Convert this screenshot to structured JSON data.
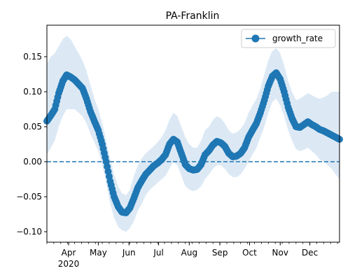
{
  "chart_data": {
    "type": "line",
    "title": "PA-Franklin",
    "xlabel": "",
    "ylabel": "",
    "x_range": [
      "2020-03-10",
      "2020-12-31"
    ],
    "ylim": [
      -0.115,
      0.195
    ],
    "y_ticks": [
      -0.1,
      -0.05,
      0.0,
      0.05,
      0.1,
      0.15
    ],
    "y_tick_labels": [
      "−0.10",
      "−0.05",
      "0.00",
      "0.05",
      "0.10",
      "0.15"
    ],
    "x_ticks": [
      {
        "date": "2020-04-01",
        "label": "Apr",
        "sublabel": "2020"
      },
      {
        "date": "2020-05-01",
        "label": "May",
        "sublabel": ""
      },
      {
        "date": "2020-06-01",
        "label": "Jun",
        "sublabel": ""
      },
      {
        "date": "2020-07-01",
        "label": "Jul",
        "sublabel": ""
      },
      {
        "date": "2020-08-01",
        "label": "Aug",
        "sublabel": ""
      },
      {
        "date": "2020-09-01",
        "label": "Sep",
        "sublabel": ""
      },
      {
        "date": "2020-10-01",
        "label": "Oct",
        "sublabel": ""
      },
      {
        "date": "2020-11-01",
        "label": "Nov",
        "sublabel": ""
      },
      {
        "date": "2020-12-01",
        "label": "Dec",
        "sublabel": ""
      }
    ],
    "reference_line": {
      "y": 0.0,
      "style": "dashed",
      "color": "#1f77b4"
    },
    "grid": false,
    "legend": {
      "position": "top-right",
      "entries": [
        "growth_rate"
      ]
    },
    "series": [
      {
        "name": "growth_rate",
        "color": "#1f77b4",
        "marker": "circle",
        "band_color": "#dce9f5",
        "points": [
          {
            "date": "2020-03-10",
            "y": 0.058,
            "lo": 0.01,
            "hi": 0.14
          },
          {
            "date": "2020-03-14",
            "y": 0.066,
            "lo": 0.02,
            "hi": 0.15
          },
          {
            "date": "2020-03-18",
            "y": 0.075,
            "lo": 0.03,
            "hi": 0.155
          },
          {
            "date": "2020-03-22",
            "y": 0.098,
            "lo": 0.05,
            "hi": 0.165
          },
          {
            "date": "2020-03-26",
            "y": 0.115,
            "lo": 0.065,
            "hi": 0.175
          },
          {
            "date": "2020-03-30",
            "y": 0.124,
            "lo": 0.075,
            "hi": 0.18
          },
          {
            "date": "2020-04-03",
            "y": 0.121,
            "lo": 0.075,
            "hi": 0.175
          },
          {
            "date": "2020-04-07",
            "y": 0.117,
            "lo": 0.075,
            "hi": 0.165
          },
          {
            "date": "2020-04-11",
            "y": 0.111,
            "lo": 0.07,
            "hi": 0.155
          },
          {
            "date": "2020-04-15",
            "y": 0.105,
            "lo": 0.065,
            "hi": 0.145
          },
          {
            "date": "2020-04-19",
            "y": 0.09,
            "lo": 0.055,
            "hi": 0.13
          },
          {
            "date": "2020-04-23",
            "y": 0.072,
            "lo": 0.04,
            "hi": 0.11
          },
          {
            "date": "2020-04-27",
            "y": 0.058,
            "lo": 0.028,
            "hi": 0.09
          },
          {
            "date": "2020-05-01",
            "y": 0.045,
            "lo": 0.015,
            "hi": 0.075
          },
          {
            "date": "2020-05-05",
            "y": 0.025,
            "lo": -0.005,
            "hi": 0.055
          },
          {
            "date": "2020-05-09",
            "y": 0.0,
            "lo": -0.03,
            "hi": 0.03
          },
          {
            "date": "2020-05-13",
            "y": -0.028,
            "lo": -0.06,
            "hi": 0.005
          },
          {
            "date": "2020-05-17",
            "y": -0.05,
            "lo": -0.08,
            "hi": -0.018
          },
          {
            "date": "2020-05-21",
            "y": -0.064,
            "lo": -0.093,
            "hi": -0.035
          },
          {
            "date": "2020-05-25",
            "y": -0.072,
            "lo": -0.098,
            "hi": -0.045
          },
          {
            "date": "2020-05-29",
            "y": -0.073,
            "lo": -0.1,
            "hi": -0.048
          },
          {
            "date": "2020-06-02",
            "y": -0.066,
            "lo": -0.095,
            "hi": -0.04
          },
          {
            "date": "2020-06-06",
            "y": -0.052,
            "lo": -0.085,
            "hi": -0.02
          },
          {
            "date": "2020-06-10",
            "y": -0.037,
            "lo": -0.07,
            "hi": -0.005
          },
          {
            "date": "2020-06-14",
            "y": -0.027,
            "lo": -0.06,
            "hi": 0.005
          },
          {
            "date": "2020-06-18",
            "y": -0.018,
            "lo": -0.048,
            "hi": 0.012
          },
          {
            "date": "2020-06-22",
            "y": -0.012,
            "lo": -0.04,
            "hi": 0.017
          },
          {
            "date": "2020-06-26",
            "y": -0.006,
            "lo": -0.035,
            "hi": 0.022
          },
          {
            "date": "2020-06-30",
            "y": -0.002,
            "lo": -0.03,
            "hi": 0.028
          },
          {
            "date": "2020-07-04",
            "y": 0.003,
            "lo": -0.025,
            "hi": 0.035
          },
          {
            "date": "2020-07-08",
            "y": 0.01,
            "lo": -0.02,
            "hi": 0.045
          },
          {
            "date": "2020-07-12",
            "y": 0.025,
            "lo": -0.01,
            "hi": 0.06
          },
          {
            "date": "2020-07-16",
            "y": 0.032,
            "lo": 0.0,
            "hi": 0.07
          },
          {
            "date": "2020-07-20",
            "y": 0.028,
            "lo": -0.005,
            "hi": 0.065
          },
          {
            "date": "2020-07-24",
            "y": 0.012,
            "lo": -0.02,
            "hi": 0.05
          },
          {
            "date": "2020-07-28",
            "y": -0.004,
            "lo": -0.035,
            "hi": 0.035
          },
          {
            "date": "2020-08-01",
            "y": -0.01,
            "lo": -0.04,
            "hi": 0.025
          },
          {
            "date": "2020-08-05",
            "y": -0.012,
            "lo": -0.042,
            "hi": 0.02
          },
          {
            "date": "2020-08-09",
            "y": -0.011,
            "lo": -0.04,
            "hi": 0.02
          },
          {
            "date": "2020-08-13",
            "y": -0.004,
            "lo": -0.035,
            "hi": 0.03
          },
          {
            "date": "2020-08-17",
            "y": 0.01,
            "lo": -0.025,
            "hi": 0.045
          },
          {
            "date": "2020-08-21",
            "y": 0.016,
            "lo": -0.018,
            "hi": 0.05
          },
          {
            "date": "2020-08-25",
            "y": 0.024,
            "lo": -0.01,
            "hi": 0.06
          },
          {
            "date": "2020-08-29",
            "y": 0.029,
            "lo": -0.005,
            "hi": 0.065
          },
          {
            "date": "2020-09-02",
            "y": 0.027,
            "lo": -0.005,
            "hi": 0.062
          },
          {
            "date": "2020-09-06",
            "y": 0.022,
            "lo": -0.01,
            "hi": 0.055
          },
          {
            "date": "2020-09-10",
            "y": 0.012,
            "lo": -0.018,
            "hi": 0.045
          },
          {
            "date": "2020-09-14",
            "y": 0.007,
            "lo": -0.022,
            "hi": 0.04
          },
          {
            "date": "2020-09-18",
            "y": 0.008,
            "lo": -0.022,
            "hi": 0.042
          },
          {
            "date": "2020-09-22",
            "y": 0.012,
            "lo": -0.018,
            "hi": 0.047
          },
          {
            "date": "2020-09-26",
            "y": 0.02,
            "lo": -0.01,
            "hi": 0.055
          },
          {
            "date": "2020-09-30",
            "y": 0.035,
            "lo": 0.0,
            "hi": 0.07
          },
          {
            "date": "2020-10-04",
            "y": 0.045,
            "lo": 0.01,
            "hi": 0.08
          },
          {
            "date": "2020-10-08",
            "y": 0.055,
            "lo": 0.02,
            "hi": 0.09
          },
          {
            "date": "2020-10-12",
            "y": 0.07,
            "lo": 0.035,
            "hi": 0.105
          },
          {
            "date": "2020-10-16",
            "y": 0.088,
            "lo": 0.05,
            "hi": 0.125
          },
          {
            "date": "2020-10-20",
            "y": 0.108,
            "lo": 0.07,
            "hi": 0.145
          },
          {
            "date": "2020-10-24",
            "y": 0.122,
            "lo": 0.085,
            "hi": 0.158
          },
          {
            "date": "2020-10-28",
            "y": 0.127,
            "lo": 0.09,
            "hi": 0.162
          },
          {
            "date": "2020-11-01",
            "y": 0.118,
            "lo": 0.08,
            "hi": 0.155
          },
          {
            "date": "2020-11-05",
            "y": 0.1,
            "lo": 0.065,
            "hi": 0.138
          },
          {
            "date": "2020-11-09",
            "y": 0.078,
            "lo": 0.045,
            "hi": 0.115
          },
          {
            "date": "2020-11-13",
            "y": 0.062,
            "lo": 0.03,
            "hi": 0.1
          },
          {
            "date": "2020-11-17",
            "y": 0.05,
            "lo": 0.018,
            "hi": 0.088
          },
          {
            "date": "2020-11-21",
            "y": 0.049,
            "lo": 0.015,
            "hi": 0.09
          },
          {
            "date": "2020-11-25",
            "y": 0.053,
            "lo": 0.017,
            "hi": 0.094
          },
          {
            "date": "2020-11-29",
            "y": 0.057,
            "lo": 0.02,
            "hi": 0.098
          },
          {
            "date": "2020-12-03",
            "y": 0.053,
            "lo": 0.015,
            "hi": 0.095
          },
          {
            "date": "2020-12-07",
            "y": 0.05,
            "lo": 0.01,
            "hi": 0.092
          },
          {
            "date": "2020-12-11",
            "y": 0.046,
            "lo": 0.003,
            "hi": 0.09
          },
          {
            "date": "2020-12-15",
            "y": 0.044,
            "lo": 0.0,
            "hi": 0.092
          },
          {
            "date": "2020-12-19",
            "y": 0.041,
            "lo": -0.005,
            "hi": 0.095
          },
          {
            "date": "2020-12-23",
            "y": 0.038,
            "lo": -0.01,
            "hi": 0.1
          },
          {
            "date": "2020-12-27",
            "y": 0.035,
            "lo": -0.018,
            "hi": 0.1
          },
          {
            "date": "2020-12-31",
            "y": 0.032,
            "lo": -0.025,
            "hi": 0.1
          }
        ]
      }
    ]
  }
}
